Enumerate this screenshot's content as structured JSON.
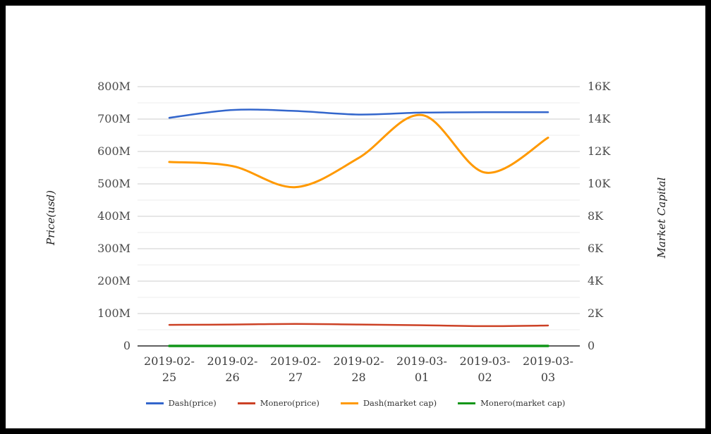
{
  "chart_data": {
    "type": "line",
    "title": "",
    "categories": [
      "2019-02-25",
      "2019-02-26",
      "2019-02-27",
      "2019-02-28",
      "2019-03-01",
      "2019-03-02",
      "2019-03-03"
    ],
    "series": [
      {
        "name": "Dash(price)",
        "color": "#3366cc",
        "axis": "left",
        "values": [
          704,
          728,
          725,
          714,
          720,
          721,
          721
        ]
      },
      {
        "name": "Monero(price)",
        "color": "#cc4125",
        "axis": "left",
        "values": [
          65,
          66,
          68,
          66,
          64,
          61,
          63
        ]
      },
      {
        "name": "Dash(market cap)",
        "color": "#ff9900",
        "axis": "right",
        "values": [
          11350,
          11100,
          9800,
          11600,
          14250,
          10700,
          12850
        ]
      },
      {
        "name": "Monero(market cap)",
        "color": "#109618",
        "axis": "right",
        "values": [
          0,
          0,
          0,
          0,
          0,
          0,
          0
        ]
      }
    ],
    "left_axis": {
      "title": "Price(usd)",
      "unit": "M",
      "min": 0,
      "max": 800,
      "ticks": [
        "0",
        "100M",
        "200M",
        "300M",
        "400M",
        "500M",
        "600M",
        "700M",
        "800M"
      ]
    },
    "right_axis": {
      "title": "Market Capital",
      "unit": "K",
      "min": 0,
      "max": 16000,
      "ticks": [
        "0",
        "2K",
        "4K",
        "6K",
        "8K",
        "10K",
        "12K",
        "14K",
        "16K"
      ]
    },
    "legend_position": "bottom",
    "grid": true,
    "minor_grid": true
  }
}
